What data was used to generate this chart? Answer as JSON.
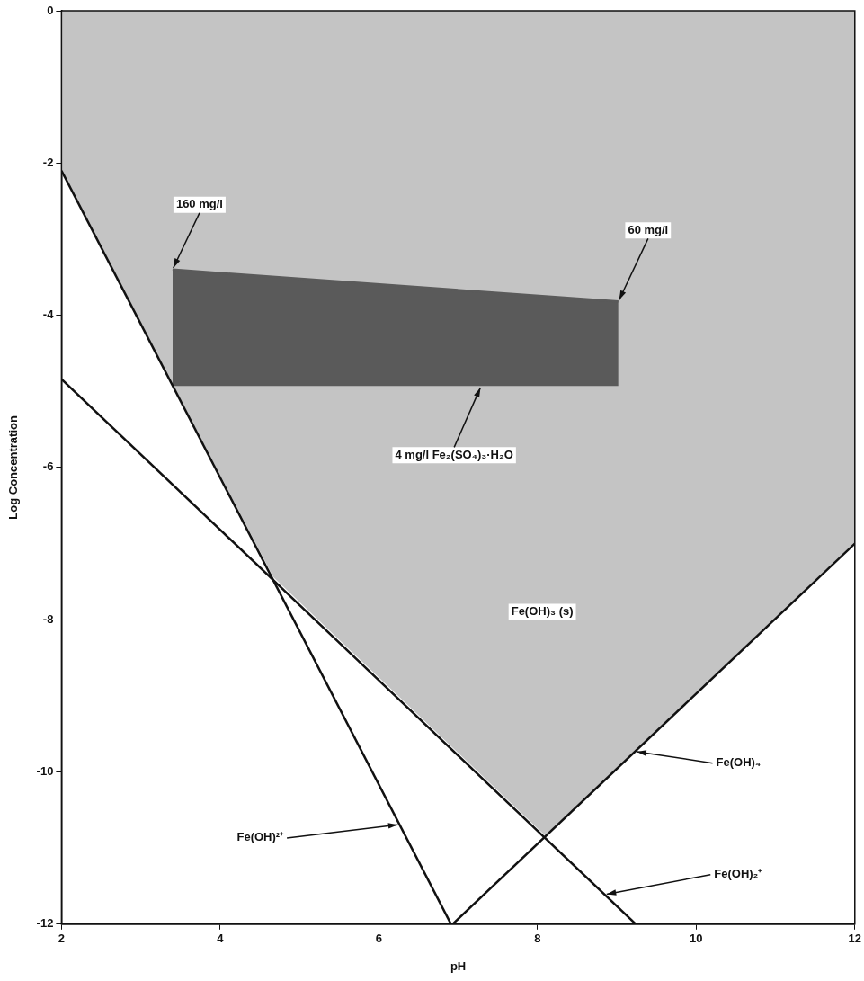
{
  "chart_data": {
    "type": "line",
    "xlabel": "pH",
    "ylabel": "Log Concentration",
    "xlim": [
      2,
      12
    ],
    "xticks": [
      2,
      4,
      6,
      8,
      10,
      12
    ],
    "ylim": [
      -12,
      0
    ],
    "yticks": [
      0,
      -2,
      -4,
      -6,
      -8,
      -10,
      -12
    ],
    "grid": false,
    "legend": false,
    "marker": "none",
    "line_style": "solid",
    "series": [
      {
        "type": "area",
        "color": "#c4c4c4",
        "x": [
          2,
          4.67,
          8.1,
          12
        ],
        "values": [
          -2.1,
          -7.44,
          -10.84,
          -7.0
        ]
      },
      {
        "type": "line",
        "color": "#5a5a5a",
        "x": [
          3.4,
          9.02
        ],
        "values": [
          -3.4,
          -3.82
        ],
        "lower": [
          -4.93,
          -4.93
        ],
        "upper": [
          -3.4,
          -3.82
        ]
      },
      {
        "type": "line",
        "color": "#111111",
        "x": [
          2,
          6.91
        ],
        "values": [
          -2.1,
          -12
        ]
      },
      {
        "type": "line",
        "color": "#111111",
        "x": [
          2,
          9.24
        ],
        "values": [
          -4.84,
          -12
        ]
      },
      {
        "type": "line",
        "color": "#111111",
        "x": [
          6.93,
          12
        ],
        "values": [
          -12,
          -7.0
        ]
      }
    ],
    "annotations": [
      {
        "text": "160 mg/l",
        "x": 3.4,
        "y": -3.4
      },
      {
        "text": "60 mg/l",
        "x": 9.02,
        "y": -3.82
      },
      {
        "text": "4 mg/l Fe₂(SO₄)₃·H₂O",
        "x": 7.29,
        "y": -4.93
      },
      "Fe(OH)₃ (s)",
      {
        "text": "Fe(OH)²⁺",
        "x": 6.26,
        "y": -10.69
      },
      {
        "text": "Fe(OH)₄",
        "x": 9.23,
        "y": -9.73
      },
      {
        "text": "Fe(OH)₂⁺",
        "x": 8.85,
        "y": -11.61
      }
    ]
  }
}
